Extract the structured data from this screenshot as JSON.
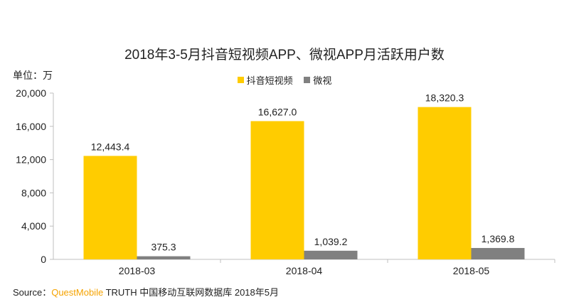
{
  "header": {
    "title": "2018年3-5月抖音短视频APP、微视APP月活跃用户数",
    "unit": "单位：万"
  },
  "legend": [
    {
      "label": "抖音短视频",
      "color": "#ffcc00"
    },
    {
      "label": "微视",
      "color": "#808080"
    }
  ],
  "source": {
    "prefix": "Source：",
    "brand": "QuestMobile",
    "rest": " TRUTH 中国移动互联网数据库 2018年5月"
  },
  "chart_data": {
    "type": "bar",
    "title": "2018年3-5月抖音短视频APP、微视APP月活跃用户数",
    "ylabel": "单位：万",
    "categories": [
      "2018-03",
      "2018-04",
      "2018-05"
    ],
    "series": [
      {
        "name": "抖音短视频",
        "color": "#ffcc00",
        "values": [
          12443.4,
          16627.0,
          18320.3
        ],
        "labels": [
          "12,443.4",
          "16,627.0",
          "18,320.3"
        ]
      },
      {
        "name": "微视",
        "color": "#808080",
        "values": [
          375.3,
          1039.2,
          1369.8
        ],
        "labels": [
          "375.3",
          "1,039.2",
          "1,369.8"
        ]
      }
    ],
    "ylim": [
      0,
      20000
    ],
    "yticks": [
      0,
      4000,
      8000,
      12000,
      16000,
      20000
    ],
    "ytick_labels": [
      "0",
      "4,000",
      "8,000",
      "12,000",
      "16,000",
      "20,000"
    ],
    "grid": false,
    "legend_position": "top-center"
  }
}
